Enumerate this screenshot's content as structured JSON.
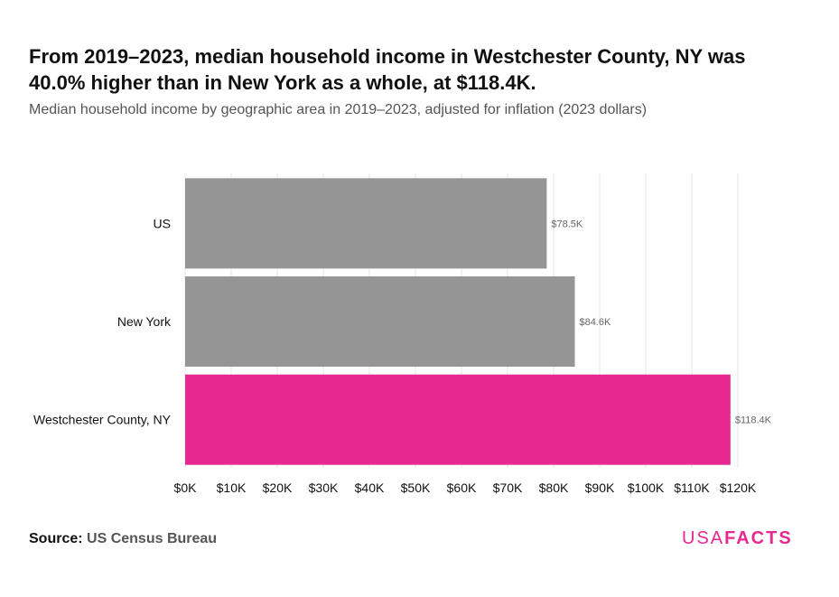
{
  "title": "From 2019–2023, median household income in Westchester County, NY was 40.0% higher than in New York as a whole, at $118.4K.",
  "subtitle": "Median household income by geographic area in 2019–2023, adjusted for inflation (2023 dollars)",
  "source_label": "Source:",
  "source": "US Census Bureau",
  "logo": {
    "part1": "USA",
    "part2": "FACTS"
  },
  "chart_data": {
    "type": "bar",
    "orientation": "horizontal",
    "categories": [
      "US",
      "New York",
      "Westchester County, NY"
    ],
    "values": [
      78.5,
      84.6,
      118.4
    ],
    "data_labels": [
      "$78.5K",
      "$84.6K",
      "$118.4K"
    ],
    "colors": [
      "#959595",
      "#959595",
      "#e6288f"
    ],
    "xlim": [
      0,
      120
    ],
    "xticks": [
      0,
      10,
      20,
      30,
      40,
      50,
      60,
      70,
      80,
      90,
      100,
      110,
      120
    ],
    "xtick_labels": [
      "$0K",
      "$10K",
      "$20K",
      "$30K",
      "$40K",
      "$50K",
      "$60K",
      "$70K",
      "$80K",
      "$90K",
      "$100K",
      "$110K",
      "$120K"
    ],
    "grid": true
  }
}
